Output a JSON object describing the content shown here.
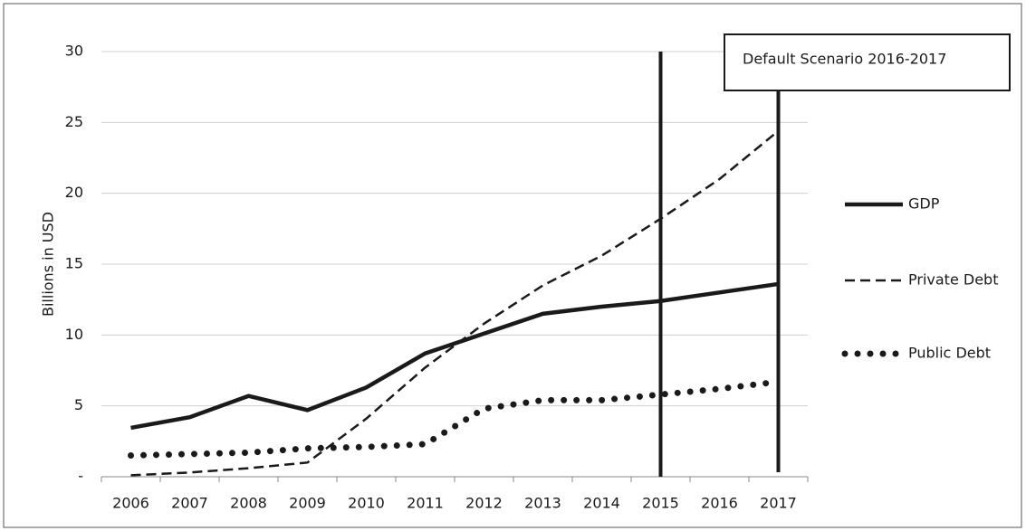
{
  "chart_data": {
    "type": "line",
    "y_label": "Billions in USD",
    "categories": [
      "2006",
      "2007",
      "2008",
      "2009",
      "2010",
      "2011",
      "2012",
      "2013",
      "2014",
      "2015",
      "2016",
      "2017"
    ],
    "series": [
      {
        "name": "GDP",
        "color": "#1a1a1a",
        "style": "solid",
        "values": [
          3.45,
          4.2,
          5.7,
          4.7,
          6.3,
          8.7,
          10.1,
          11.5,
          12.0,
          12.4,
          13.0,
          13.6
        ]
      },
      {
        "name": "Private Debt",
        "color": "#1a1a1a",
        "style": "dashed",
        "values": [
          0.1,
          0.3,
          0.6,
          1.0,
          4.1,
          7.7,
          10.8,
          13.5,
          15.6,
          18.2,
          21.0,
          24.4
        ]
      },
      {
        "name": "Public Debt",
        "color": "#1a1a1a",
        "style": "dotted",
        "values": [
          1.5,
          1.6,
          1.7,
          2.0,
          2.1,
          2.3,
          4.8,
          5.4,
          5.4,
          5.8,
          6.2,
          6.7
        ]
      }
    ],
    "ylim": [
      0,
      30
    ],
    "yticks": [
      {
        "value": 0,
        "label": "-"
      },
      5,
      10,
      15,
      20,
      25,
      30
    ],
    "grid": true,
    "legend": "right",
    "annotation": "Default Scenario 2016-2017",
    "vlines": [
      "2015",
      "2017"
    ]
  }
}
